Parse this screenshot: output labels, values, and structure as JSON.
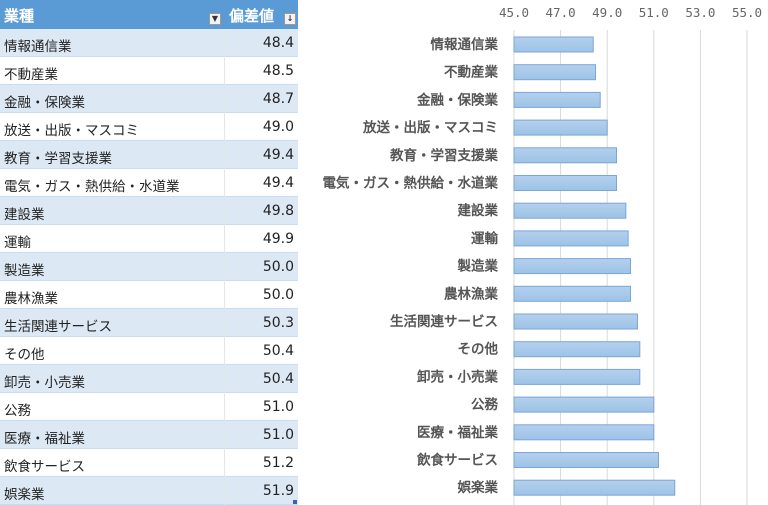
{
  "table": {
    "headers": [
      "業種",
      "偏差値"
    ],
    "header_color": "#5b9bd5",
    "band_color": "#dde8f5"
  },
  "chart_data": {
    "type": "bar",
    "orientation": "horizontal",
    "categories": [
      "情報通信業",
      "不動産業",
      "金融・保険業",
      "放送・出版・マスコミ",
      "教育・学習支援業",
      "電気・ガス・熱供給・水道業",
      "建設業",
      "運輸",
      "製造業",
      "農林漁業",
      "生活関連サービス",
      "その他",
      "卸売・小売業",
      "公務",
      "医療・福祉業",
      "飲食サービス",
      "娯楽業"
    ],
    "values": [
      48.4,
      48.5,
      48.7,
      49.0,
      49.4,
      49.4,
      49.8,
      49.9,
      50.0,
      50.0,
      50.3,
      50.4,
      50.4,
      51.0,
      51.0,
      51.2,
      51.9
    ],
    "xlim": [
      45.0,
      55.0
    ],
    "xticks": [
      "45.0",
      "47.0",
      "49.0",
      "51.0",
      "53.0",
      "55.0"
    ],
    "axis_position": "top",
    "grid": true,
    "bar_color": "#9dc3e6",
    "bar_border": "#7aa6d8"
  }
}
